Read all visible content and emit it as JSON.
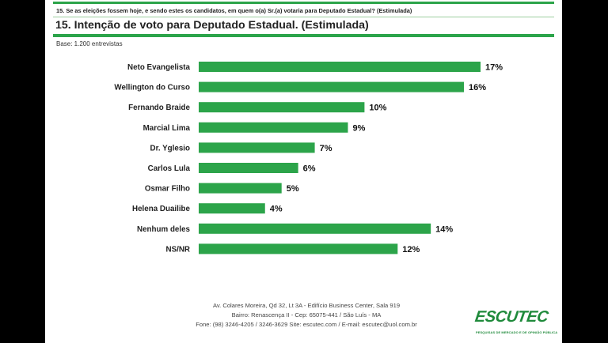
{
  "header": {
    "question": "15. Se as eleições fossem hoje, e sendo estes os candidatos, em quem o(a) Sr.(a) votaria para Deputado Estadual? (Estimulada)",
    "title": "15. Intenção de voto para Deputado Estadual. (Estimulada)",
    "base": "Base: 1.200 entrevistas"
  },
  "chart_data": {
    "type": "bar",
    "orientation": "horizontal",
    "categories": [
      "Neto Evangelista",
      "Wellington do Curso",
      "Fernando Braide",
      "Marcial Lima",
      "Dr. Yglesio",
      "Carlos Lula",
      "Osmar Filho",
      "Helena Duailibe",
      "Nenhum deles",
      "NS/NR"
    ],
    "values": [
      17,
      16,
      10,
      9,
      7,
      6,
      5,
      4,
      14,
      12
    ],
    "value_labels": [
      "17%",
      "16%",
      "10%",
      "9%",
      "7%",
      "6%",
      "5%",
      "4%",
      "14%",
      "12%"
    ],
    "title": "15. Intenção de voto para Deputado Estadual. (Estimulada)",
    "xlabel": "",
    "ylabel": "",
    "xlim": [
      0,
      17
    ],
    "grid": false,
    "legend": "none",
    "bar_color": "#2ca44a"
  },
  "footer": {
    "address_line1": "Av. Colares Moreira, Qd 32, Lt 3A - Edifício Business Center, Sala 919",
    "address_line2": "Bairro: Renascença II - Cep: 65075-441 / São Luís - MA",
    "contact_line": "Fone: (98) 3246-4205 / 3246-3629 Site: escutec.com / E-mail: escutec@uol.com.br"
  },
  "logo": {
    "name": "ESCUTEC",
    "tagline": "PESQUISAS DE MERCADO E DE OPINIÃO PÚBLICA"
  },
  "colors": {
    "accent": "#2ca44a",
    "text": "#222222",
    "background": "#ffffff"
  }
}
